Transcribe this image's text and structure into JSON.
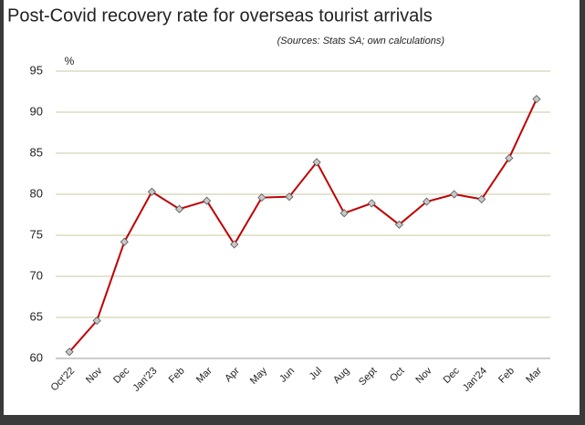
{
  "chart_data": {
    "type": "line",
    "title": "Post-Covid recovery rate for overseas tourist arrivals",
    "subtitle": "(Sources: Stats SA; own calculations)",
    "y_label": "%",
    "categories": [
      "Oct'22",
      "Nov",
      "Dec",
      "Jan'23",
      "Feb",
      "Mar",
      "Apr",
      "May",
      "Jun",
      "Jul",
      "Aug",
      "Sept",
      "Oct",
      "Nov",
      "Dec",
      "Jan'24",
      "Feb",
      "Mar"
    ],
    "series": [
      {
        "name": "Recovery rate",
        "color": "#c00000",
        "values": [
          60.8,
          64.6,
          74.2,
          80.3,
          78.2,
          79.2,
          73.9,
          79.6,
          79.7,
          83.9,
          77.7,
          78.9,
          76.3,
          79.1,
          80.0,
          79.4,
          84.4,
          91.6
        ]
      }
    ],
    "ylim": [
      60,
      95
    ],
    "yticks": [
      60,
      65,
      70,
      75,
      80,
      85,
      90,
      95
    ],
    "grid": true
  }
}
